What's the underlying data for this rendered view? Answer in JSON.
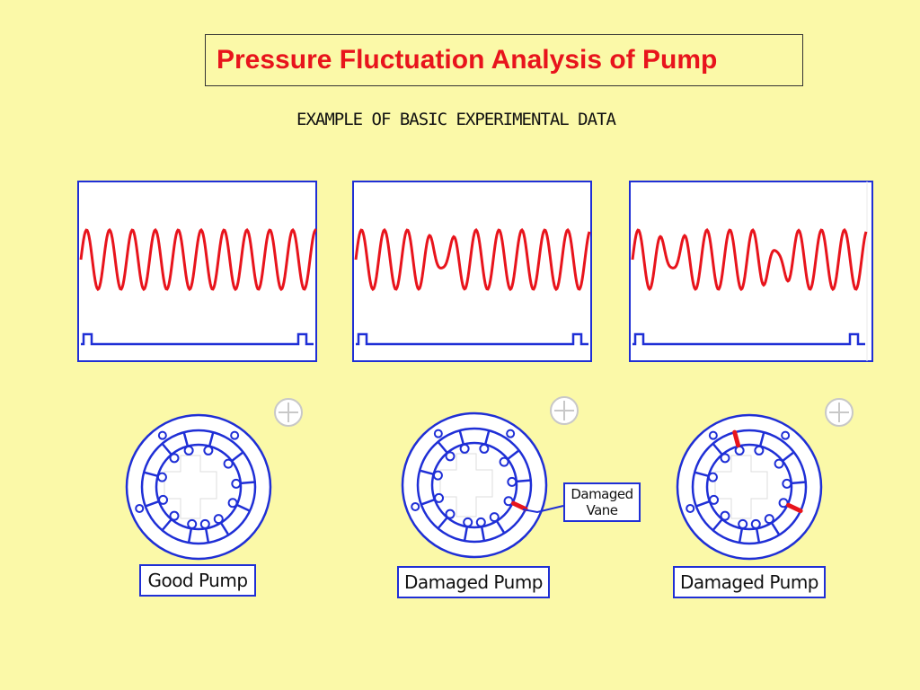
{
  "title": "Pressure Fluctuation Analysis of Pump",
  "subtitle": "EXAMPLE OF BASIC EXPERIMENTAL DATA",
  "colors": {
    "background": "#fbf9a8",
    "title": "#e8141c",
    "signal": "#e8141c",
    "outline": "#1f2fd6",
    "damage_marker": "#e8141c"
  },
  "panels": [
    {
      "waveform": "steady"
    },
    {
      "waveform": "one-dip"
    },
    {
      "waveform": "two-dips"
    }
  ],
  "pumps": [
    {
      "label": "Good Pump",
      "damaged_vanes": []
    },
    {
      "label": "Damaged Pump",
      "damaged_vanes": [
        "right-lower"
      ]
    },
    {
      "label": "Damaged Pump",
      "damaged_vanes": [
        "top",
        "right-lower"
      ]
    }
  ],
  "callout": {
    "line1": "Damaged",
    "line2": "Vane"
  }
}
